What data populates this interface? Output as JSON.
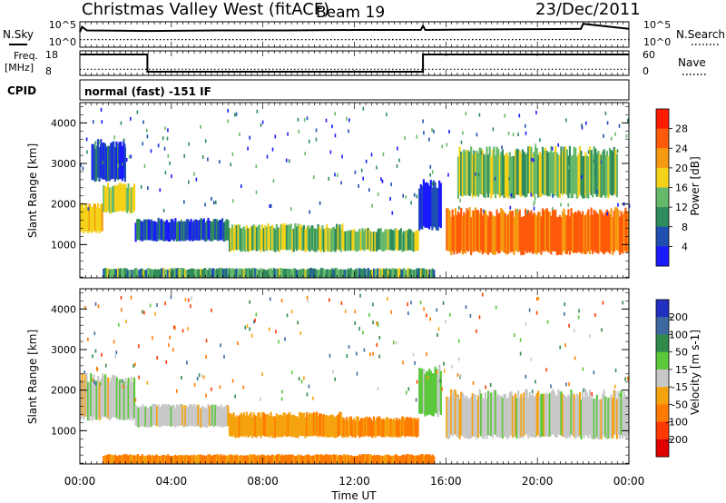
{
  "header": {
    "title": "Christmas Valley West (fitACF)",
    "beam": "Beam 19",
    "date": "23/Dec/2011"
  },
  "top_panels": {
    "nsky_label": "N.Sky",
    "nsearch_label": "N.Search",
    "freq_label_1": "Freq.",
    "freq_label_2": "[MHz]",
    "nave_label": "Nave",
    "cpid_label": "CPID",
    "mode_text": "normal (fast) -151 IF",
    "noise_ticks_left": [
      "10^5",
      "10^0"
    ],
    "noise_ticks_right": [
      "10^5",
      "10^0"
    ],
    "freq_ticks_left": [
      "18",
      "8"
    ],
    "freq_ticks_right": [
      "60",
      "0"
    ]
  },
  "chart_data": [
    {
      "type": "line",
      "title": "",
      "ylabel": "N.Sky",
      "ylabel_right": "N.Search",
      "xlabel": "Time UT",
      "series": [
        {
          "name": "N.Sky",
          "x": [
            0,
            0.1,
            0.3,
            3,
            6,
            9,
            12,
            14.9,
            15.0,
            15.1,
            18,
            21.9,
            22.0,
            24
          ],
          "y": [
            3.0,
            4.0,
            3.3,
            3.2,
            3.3,
            3.3,
            3.4,
            3.4,
            4.2,
            3.4,
            3.5,
            3.6,
            4.6,
            3.6
          ]
        },
        {
          "name": "N.Search",
          "x": [
            0,
            3,
            6,
            9,
            12,
            15,
            18,
            21,
            24
          ],
          "y": [
            1.5,
            1.5,
            1.5,
            1.5,
            1.5,
            1.5,
            1.5,
            1.5,
            1.5
          ]
        }
      ],
      "xlim": [
        0,
        24
      ],
      "ylim": [
        0,
        5
      ],
      "ytick_labels": [
        "10^0",
        "10^5"
      ]
    },
    {
      "type": "line",
      "ylabel": "Freq. [MHz]",
      "ylabel_right": "Nave",
      "series": [
        {
          "name": "Freq.",
          "x": [
            0,
            2.95,
            2.95,
            15.0,
            15.0,
            24
          ],
          "y": [
            16.5,
            16.5,
            9.5,
            9.5,
            16.5,
            16.5
          ]
        },
        {
          "name": "Nave",
          "x": [
            0,
            3,
            6,
            9,
            12,
            15,
            18,
            21,
            24
          ],
          "y": [
            15,
            15,
            15,
            15,
            15,
            15,
            15,
            15,
            15
          ]
        }
      ],
      "xlim": [
        0,
        24
      ],
      "ylim": [
        8,
        18
      ],
      "ylim_right": [
        0,
        60
      ]
    },
    {
      "type": "heatmap",
      "ylabel": "Slant Range [km]",
      "colorbar_label": "Power [dB]",
      "colorbar_ticks": [
        "28",
        "24",
        "20",
        "16",
        "12",
        "8",
        "4"
      ],
      "colors": [
        "#1a1aff",
        "#1f4fb0",
        "#2f8a5c",
        "#66b86a",
        "#f5d21a",
        "#f59a10",
        "#ff5a0a",
        "#ff1a00"
      ],
      "xlim": [
        0,
        24
      ],
      "ylim": [
        180,
        4500
      ],
      "yticks": [
        1000,
        2000,
        3000,
        4000
      ],
      "bands": [
        {
          "t0": 0.0,
          "t1": 1.0,
          "r0": 1300,
          "r1": 1950,
          "value": 22
        },
        {
          "t0": 1.0,
          "t1": 2.4,
          "r0": 1800,
          "r1": 2450,
          "value": 20
        },
        {
          "t0": 2.4,
          "t1": 6.5,
          "r0": 1100,
          "r1": 1600,
          "value": 5
        },
        {
          "t0": 6.5,
          "t1": 11.5,
          "r0": 850,
          "r1": 1450,
          "value": 15
        },
        {
          "t0": 11.5,
          "t1": 14.8,
          "r0": 850,
          "r1": 1350,
          "value": 14
        },
        {
          "t0": 14.8,
          "t1": 15.8,
          "r0": 1400,
          "r1": 2500,
          "value": 4
        },
        {
          "t0": 16.0,
          "t1": 24.0,
          "r0": 800,
          "r1": 1800,
          "value": 28
        },
        {
          "t0": 0.5,
          "t1": 2.0,
          "r0": 2600,
          "r1": 3500,
          "value": 4
        },
        {
          "t0": 16.5,
          "t1": 23.5,
          "r0": 2200,
          "r1": 3300,
          "value": 14
        },
        {
          "t0": 1.0,
          "t1": 15.5,
          "r0": 180,
          "r1": 400,
          "value": 12
        }
      ]
    },
    {
      "type": "heatmap",
      "ylabel": "Slant Range [km]",
      "xlabel": "Time UT",
      "colorbar_label": "Velocity [m s-1]",
      "colorbar_ticks": [
        "200",
        "100",
        "50",
        "15",
        "-15",
        "-50",
        "-100",
        "-200"
      ],
      "colors": [
        "#2030c0",
        "#3c6aa0",
        "#2f8a4c",
        "#5ac83a",
        "#c8c8c8",
        "#f5a20f",
        "#ff7a00",
        "#ff3a00",
        "#e00000"
      ],
      "xlim": [
        0,
        24
      ],
      "ylim": [
        180,
        4500
      ],
      "yticks": [
        1000,
        2000,
        3000,
        4000
      ],
      "xtick_labels": [
        "00:00",
        "04:00",
        "08:00",
        "12:00",
        "16:00",
        "20:00",
        "00:00"
      ],
      "bands": [
        {
          "t0": 0.0,
          "t1": 2.4,
          "r0": 1300,
          "r1": 2300,
          "value": 0
        },
        {
          "t0": 2.4,
          "t1": 6.5,
          "r0": 1100,
          "r1": 1600,
          "value": 0
        },
        {
          "t0": 6.5,
          "t1": 11.5,
          "r0": 850,
          "r1": 1400,
          "value": -40
        },
        {
          "t0": 11.5,
          "t1": 14.8,
          "r0": 850,
          "r1": 1300,
          "value": -60
        },
        {
          "t0": 14.8,
          "t1": 15.8,
          "r0": 1400,
          "r1": 2500,
          "value": 20
        },
        {
          "t0": 16.0,
          "t1": 24.0,
          "r0": 850,
          "r1": 1900,
          "value": 0
        },
        {
          "t0": 1.0,
          "t1": 15.5,
          "r0": 180,
          "r1": 400,
          "value": -60
        }
      ]
    }
  ]
}
